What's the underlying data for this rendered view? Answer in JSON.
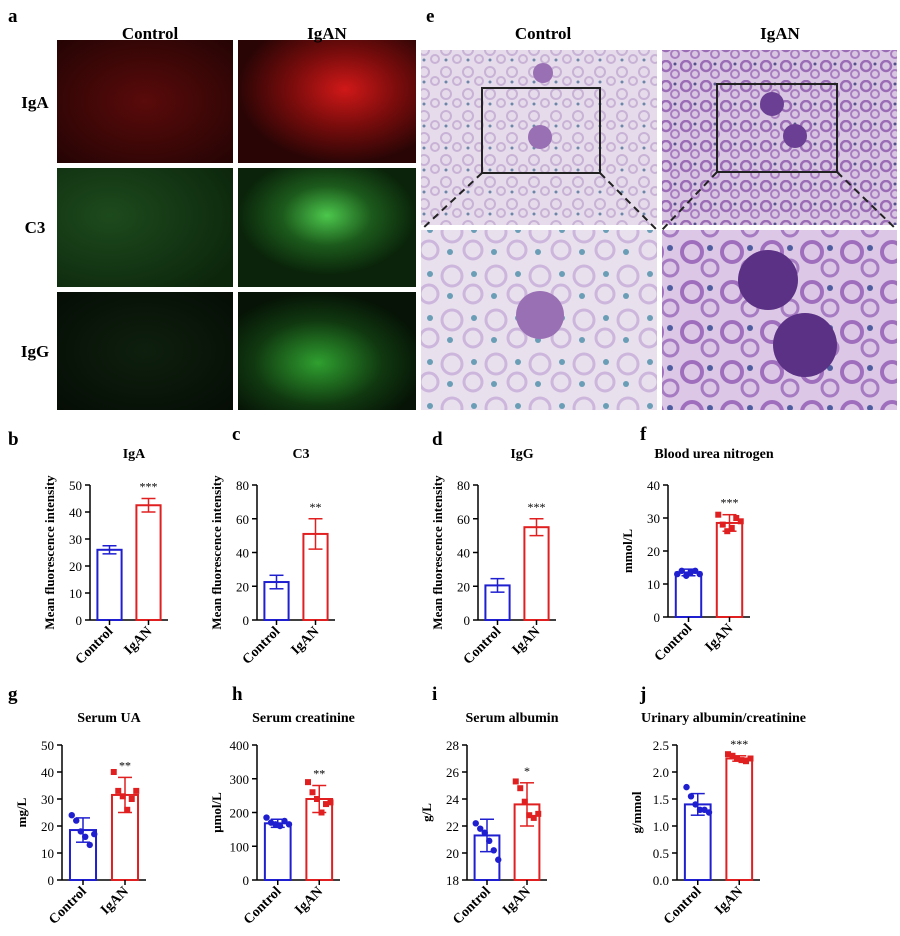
{
  "figure": {
    "panel_a": {
      "letter": "a",
      "columns": [
        "Control",
        "IgAN"
      ],
      "rows": [
        "IgA",
        "C3",
        "IgG"
      ]
    },
    "panel_e": {
      "letter": "e",
      "columns": [
        "Control",
        "IgAN"
      ]
    }
  },
  "chart_data": [
    {
      "panel": "b",
      "type": "bar",
      "title": "IgA",
      "ylabel": "Mean fluorescence intensity",
      "categories": [
        "Control",
        "IgAN"
      ],
      "values": [
        26,
        42.5
      ],
      "errors": [
        1.5,
        2.5
      ],
      "significance": "***",
      "colors": [
        "#1f1fd0",
        "#e02020"
      ],
      "ylim": [
        0,
        50
      ],
      "yticks": [
        0,
        10,
        20,
        30,
        40,
        50
      ]
    },
    {
      "panel": "c",
      "type": "bar",
      "title": "C3",
      "ylabel": "Mean fluorescence intensity",
      "categories": [
        "Control",
        "IgAN"
      ],
      "values": [
        22.5,
        51
      ],
      "errors": [
        4,
        9
      ],
      "significance": "**",
      "colors": [
        "#1f1fd0",
        "#e02020"
      ],
      "ylim": [
        0,
        80
      ],
      "yticks": [
        0,
        20,
        40,
        60,
        80
      ]
    },
    {
      "panel": "d",
      "type": "bar",
      "title": "IgG",
      "ylabel": "Mean fluorescence intensity",
      "categories": [
        "Control",
        "IgAN"
      ],
      "values": [
        20.5,
        55
      ],
      "errors": [
        4,
        5
      ],
      "significance": "***",
      "colors": [
        "#1f1fd0",
        "#e02020"
      ],
      "ylim": [
        0,
        80
      ],
      "yticks": [
        0,
        20,
        40,
        60,
        80
      ]
    },
    {
      "panel": "f",
      "type": "bar",
      "title": "Blood urea nitrogen",
      "ylabel": "mmol/L",
      "categories": [
        "Control",
        "IgAN"
      ],
      "values": [
        13.5,
        28.5
      ],
      "errors": [
        1,
        2.5
      ],
      "significance": "***",
      "colors": [
        "#1f1fd0",
        "#e02020"
      ],
      "ylim": [
        0,
        40
      ],
      "yticks": [
        0,
        10,
        20,
        30,
        40
      ],
      "points": [
        [
          13,
          14,
          12.5,
          13.5,
          14,
          13
        ],
        [
          31,
          28,
          26,
          27,
          30,
          29
        ]
      ]
    },
    {
      "panel": "g",
      "type": "bar",
      "title": "Serum UA",
      "ylabel": "mg/L",
      "categories": [
        "Control",
        "IgAN"
      ],
      "values": [
        18.5,
        31.5
      ],
      "errors": [
        4.5,
        6.5
      ],
      "significance": "**",
      "colors": [
        "#1f1fd0",
        "#e02020"
      ],
      "ylim": [
        0,
        50
      ],
      "yticks": [
        0,
        10,
        20,
        30,
        40,
        50
      ],
      "points": [
        [
          24,
          22,
          18,
          16,
          13,
          17
        ],
        [
          40,
          33,
          31,
          26,
          30,
          33
        ]
      ]
    },
    {
      "panel": "h",
      "type": "bar",
      "title": "Serum creatinine",
      "ylabel": "μmol/L",
      "categories": [
        "Control",
        "IgAN"
      ],
      "values": [
        168,
        240
      ],
      "errors": [
        12,
        40
      ],
      "significance": "**",
      "colors": [
        "#1f1fd0",
        "#e02020"
      ],
      "ylim": [
        0,
        400
      ],
      "yticks": [
        0,
        100,
        200,
        300,
        400
      ],
      "points": [
        [
          185,
          170,
          165,
          160,
          175,
          165
        ],
        [
          290,
          260,
          240,
          200,
          225,
          230
        ]
      ]
    },
    {
      "panel": "i",
      "type": "bar",
      "title": "Serum albumin",
      "ylabel": "g/L",
      "categories": [
        "Control",
        "IgAN"
      ],
      "values": [
        21.3,
        23.6
      ],
      "errors": [
        1.2,
        1.6
      ],
      "significance": "*",
      "colors": [
        "#1f1fd0",
        "#e02020"
      ],
      "ylim": [
        18,
        28
      ],
      "yticks": [
        18,
        20,
        22,
        24,
        26,
        28
      ],
      "points": [
        [
          22.2,
          21.8,
          21.5,
          20.9,
          20.2,
          19.5
        ],
        [
          25.3,
          24.8,
          23.8,
          22.8,
          22.6,
          22.9
        ]
      ]
    },
    {
      "panel": "j",
      "type": "bar",
      "title": "Urinary albumin/creatinine",
      "ylabel": "g/mmol",
      "categories": [
        "Control",
        "IgAN"
      ],
      "values": [
        1.4,
        2.25
      ],
      "errors": [
        0.2,
        0.05
      ],
      "significance": "***",
      "colors": [
        "#1f1fd0",
        "#e02020"
      ],
      "ylim": [
        0,
        2.5
      ],
      "yticks": [
        {
          "value": 0,
          "label": "0.0"
        },
        0.5,
        {
          "value": 1,
          "label": "1.0"
        },
        1.5,
        {
          "value": 2,
          "label": "2.0"
        },
        2.5
      ],
      "points": [
        [
          1.72,
          1.55,
          1.4,
          1.3,
          1.3,
          1.25
        ],
        [
          2.33,
          2.3,
          2.25,
          2.22,
          2.2,
          2.25
        ]
      ]
    }
  ]
}
